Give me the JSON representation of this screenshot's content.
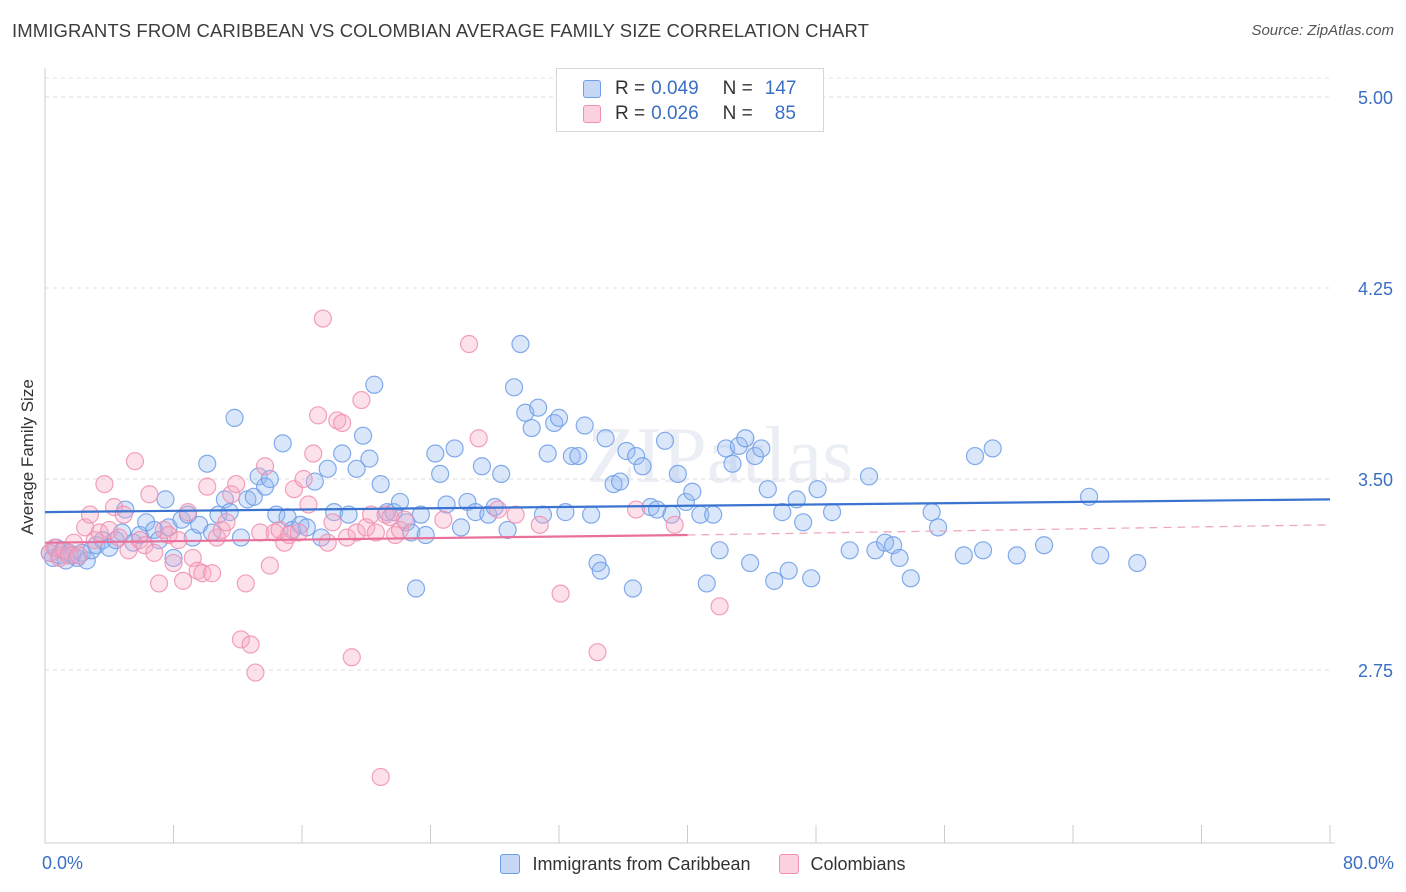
{
  "title": "IMMIGRANTS FROM CARIBBEAN VS COLOMBIAN AVERAGE FAMILY SIZE CORRELATION CHART",
  "source": "Source: ZipAtlas.com",
  "watermark": "ZIPatlas",
  "legend_top": {
    "rows": [
      {
        "r_label": "R =",
        "r_value": "0.049",
        "n_label": "N =",
        "n_value": "147",
        "color": "#6d9ce8"
      },
      {
        "r_label": "R =",
        "r_value": "0.026",
        "n_label": "N =",
        "n_value": "85",
        "color": "#f08fb0"
      }
    ]
  },
  "chart_data": {
    "type": "scatter",
    "ylabel": "Average Family Size",
    "x_tick_labels": [
      "0.0%",
      "80.0%"
    ],
    "y_tick_labels": [
      "5.00",
      "4.25",
      "3.50",
      "2.75"
    ],
    "y_ticks": [
      5.0,
      4.25,
      3.5,
      2.75
    ],
    "xlim": [
      0,
      80
    ],
    "ylim": [
      2.25,
      5.05
    ],
    "grid": "horizontal dashed",
    "legend_placement": "bottom-center",
    "series": [
      {
        "name": "Immigrants from Caribbean",
        "color": "#6d9ce8",
        "trend": {
          "x": [
            0,
            80
          ],
          "y": [
            3.37,
            3.42
          ]
        },
        "points": [
          [
            0.3,
            3.21
          ],
          [
            0.5,
            3.19
          ],
          [
            0.7,
            3.23
          ],
          [
            0.9,
            3.2
          ],
          [
            1.1,
            3.22
          ],
          [
            1.3,
            3.18
          ],
          [
            1.5,
            3.21
          ],
          [
            1.7,
            3.2
          ],
          [
            2.0,
            3.19
          ],
          [
            2.3,
            3.21
          ],
          [
            2.6,
            3.18
          ],
          [
            2.9,
            3.22
          ],
          [
            3.2,
            3.24
          ],
          [
            3.6,
            3.26
          ],
          [
            4.0,
            3.23
          ],
          [
            4.4,
            3.26
          ],
          [
            4.8,
            3.29
          ],
          [
            5.0,
            3.38
          ],
          [
            5.5,
            3.25
          ],
          [
            5.9,
            3.28
          ],
          [
            6.3,
            3.33
          ],
          [
            6.8,
            3.3
          ],
          [
            7.1,
            3.26
          ],
          [
            7.5,
            3.42
          ],
          [
            7.7,
            3.31
          ],
          [
            8.0,
            3.19
          ],
          [
            8.5,
            3.34
          ],
          [
            8.9,
            3.36
          ],
          [
            9.2,
            3.27
          ],
          [
            9.6,
            3.32
          ],
          [
            10.1,
            3.56
          ],
          [
            10.4,
            3.29
          ],
          [
            10.8,
            3.36
          ],
          [
            11.2,
            3.42
          ],
          [
            11.5,
            3.37
          ],
          [
            11.8,
            3.74
          ],
          [
            12.2,
            3.27
          ],
          [
            12.6,
            3.42
          ],
          [
            13.0,
            3.43
          ],
          [
            13.3,
            3.51
          ],
          [
            13.7,
            3.47
          ],
          [
            14.0,
            3.5
          ],
          [
            14.4,
            3.36
          ],
          [
            14.8,
            3.64
          ],
          [
            15.1,
            3.35
          ],
          [
            15.4,
            3.3
          ],
          [
            15.9,
            3.32
          ],
          [
            16.3,
            3.31
          ],
          [
            16.8,
            3.49
          ],
          [
            17.2,
            3.27
          ],
          [
            17.6,
            3.54
          ],
          [
            18.0,
            3.37
          ],
          [
            18.5,
            3.6
          ],
          [
            18.9,
            3.36
          ],
          [
            19.4,
            3.54
          ],
          [
            19.8,
            3.67
          ],
          [
            20.2,
            3.58
          ],
          [
            20.5,
            3.87
          ],
          [
            20.9,
            3.48
          ],
          [
            21.3,
            3.37
          ],
          [
            21.7,
            3.37
          ],
          [
            22.1,
            3.41
          ],
          [
            22.5,
            3.33
          ],
          [
            22.8,
            3.29
          ],
          [
            23.1,
            3.07
          ],
          [
            23.4,
            3.36
          ],
          [
            23.7,
            3.28
          ],
          [
            24.3,
            3.6
          ],
          [
            24.6,
            3.52
          ],
          [
            25.0,
            3.4
          ],
          [
            25.5,
            3.62
          ],
          [
            25.9,
            3.31
          ],
          [
            26.3,
            3.41
          ],
          [
            26.8,
            3.37
          ],
          [
            27.2,
            3.55
          ],
          [
            27.6,
            3.36
          ],
          [
            28.0,
            3.39
          ],
          [
            28.4,
            3.52
          ],
          [
            28.8,
            3.3
          ],
          [
            29.2,
            3.86
          ],
          [
            29.6,
            4.03
          ],
          [
            29.9,
            3.76
          ],
          [
            30.3,
            3.7
          ],
          [
            30.7,
            3.78
          ],
          [
            31.0,
            3.36
          ],
          [
            31.3,
            3.6
          ],
          [
            31.7,
            3.72
          ],
          [
            32.0,
            3.74
          ],
          [
            32.4,
            3.37
          ],
          [
            32.8,
            3.59
          ],
          [
            33.2,
            3.59
          ],
          [
            33.6,
            3.71
          ],
          [
            34.0,
            3.36
          ],
          [
            34.4,
            3.17
          ],
          [
            34.6,
            3.14
          ],
          [
            34.9,
            3.66
          ],
          [
            35.4,
            3.48
          ],
          [
            35.8,
            3.49
          ],
          [
            36.2,
            3.61
          ],
          [
            36.6,
            3.07
          ],
          [
            36.8,
            3.59
          ],
          [
            37.2,
            3.55
          ],
          [
            37.7,
            3.39
          ],
          [
            38.1,
            3.38
          ],
          [
            38.6,
            3.65
          ],
          [
            39.0,
            3.36
          ],
          [
            39.4,
            3.52
          ],
          [
            39.9,
            3.41
          ],
          [
            40.3,
            3.45
          ],
          [
            40.8,
            3.36
          ],
          [
            41.2,
            3.09
          ],
          [
            41.6,
            3.36
          ],
          [
            42.0,
            3.22
          ],
          [
            42.4,
            3.62
          ],
          [
            42.8,
            3.56
          ],
          [
            43.2,
            3.63
          ],
          [
            43.6,
            3.66
          ],
          [
            43.9,
            3.17
          ],
          [
            44.2,
            3.59
          ],
          [
            44.6,
            3.62
          ],
          [
            45.0,
            3.46
          ],
          [
            45.4,
            3.1
          ],
          [
            45.9,
            3.37
          ],
          [
            46.3,
            3.14
          ],
          [
            46.8,
            3.42
          ],
          [
            47.2,
            3.33
          ],
          [
            47.7,
            3.11
          ],
          [
            48.1,
            3.46
          ],
          [
            49.0,
            3.37
          ],
          [
            50.1,
            3.22
          ],
          [
            51.3,
            3.51
          ],
          [
            51.7,
            3.22
          ],
          [
            52.3,
            3.25
          ],
          [
            52.8,
            3.24
          ],
          [
            53.2,
            3.19
          ],
          [
            53.9,
            3.11
          ],
          [
            55.2,
            3.37
          ],
          [
            55.6,
            3.31
          ],
          [
            57.2,
            3.2
          ],
          [
            57.9,
            3.59
          ],
          [
            58.4,
            3.22
          ],
          [
            59.0,
            3.62
          ],
          [
            60.5,
            3.2
          ],
          [
            62.2,
            3.24
          ],
          [
            65.0,
            3.43
          ],
          [
            65.7,
            3.2
          ],
          [
            68.0,
            3.17
          ]
        ]
      },
      {
        "name": "Colombians",
        "color": "#f08fb0",
        "trend": {
          "x": [
            0,
            40
          ],
          "y": [
            3.25,
            3.28
          ],
          "dashed_to": {
            "x": 80,
            "y": 3.32
          }
        },
        "points": [
          [
            0.3,
            3.21
          ],
          [
            0.6,
            3.23
          ],
          [
            0.9,
            3.19
          ],
          [
            1.2,
            3.22
          ],
          [
            1.5,
            3.2
          ],
          [
            1.8,
            3.25
          ],
          [
            2.1,
            3.2
          ],
          [
            2.5,
            3.31
          ],
          [
            2.8,
            3.36
          ],
          [
            3.1,
            3.26
          ],
          [
            3.4,
            3.29
          ],
          [
            3.7,
            3.48
          ],
          [
            4.0,
            3.3
          ],
          [
            4.3,
            3.39
          ],
          [
            4.6,
            3.27
          ],
          [
            4.9,
            3.36
          ],
          [
            5.2,
            3.22
          ],
          [
            5.6,
            3.57
          ],
          [
            5.9,
            3.26
          ],
          [
            6.2,
            3.24
          ],
          [
            6.5,
            3.44
          ],
          [
            6.8,
            3.21
          ],
          [
            7.1,
            3.09
          ],
          [
            7.4,
            3.3
          ],
          [
            7.7,
            3.28
          ],
          [
            8.0,
            3.17
          ],
          [
            8.3,
            3.26
          ],
          [
            8.6,
            3.1
          ],
          [
            8.9,
            3.37
          ],
          [
            9.2,
            3.19
          ],
          [
            9.5,
            3.14
          ],
          [
            9.8,
            3.13
          ],
          [
            10.1,
            3.47
          ],
          [
            10.4,
            3.13
          ],
          [
            10.7,
            3.27
          ],
          [
            11.0,
            3.3
          ],
          [
            11.3,
            3.33
          ],
          [
            11.6,
            3.44
          ],
          [
            11.9,
            3.48
          ],
          [
            12.2,
            2.87
          ],
          [
            12.5,
            3.09
          ],
          [
            12.8,
            2.85
          ],
          [
            13.1,
            2.74
          ],
          [
            13.4,
            3.29
          ],
          [
            13.7,
            3.55
          ],
          [
            14.0,
            3.16
          ],
          [
            14.3,
            3.29
          ],
          [
            14.6,
            3.3
          ],
          [
            14.9,
            3.25
          ],
          [
            15.2,
            3.28
          ],
          [
            15.5,
            3.46
          ],
          [
            15.8,
            3.29
          ],
          [
            16.1,
            3.5
          ],
          [
            16.4,
            3.4
          ],
          [
            16.7,
            3.6
          ],
          [
            17.0,
            3.75
          ],
          [
            17.3,
            4.13
          ],
          [
            17.6,
            3.25
          ],
          [
            17.9,
            3.33
          ],
          [
            18.2,
            3.73
          ],
          [
            18.5,
            3.72
          ],
          [
            18.8,
            3.27
          ],
          [
            19.1,
            2.8
          ],
          [
            19.4,
            3.29
          ],
          [
            19.7,
            3.81
          ],
          [
            20.0,
            3.31
          ],
          [
            20.3,
            3.36
          ],
          [
            20.6,
            3.29
          ],
          [
            20.9,
            2.33
          ],
          [
            21.2,
            3.36
          ],
          [
            21.5,
            3.35
          ],
          [
            21.8,
            3.28
          ],
          [
            22.1,
            3.3
          ],
          [
            22.4,
            3.34
          ],
          [
            24.8,
            3.34
          ],
          [
            26.4,
            4.03
          ],
          [
            27.0,
            3.66
          ],
          [
            28.2,
            3.38
          ],
          [
            29.3,
            3.36
          ],
          [
            30.8,
            3.32
          ],
          [
            32.1,
            3.05
          ],
          [
            34.4,
            2.82
          ],
          [
            36.8,
            3.38
          ],
          [
            39.2,
            3.32
          ],
          [
            42.0,
            3.0
          ]
        ]
      }
    ]
  },
  "legend_bottom": [
    {
      "label": "Immigrants from Caribbean",
      "color": "#6d9ce8"
    },
    {
      "label": "Colombians",
      "color": "#f08fb0"
    }
  ]
}
